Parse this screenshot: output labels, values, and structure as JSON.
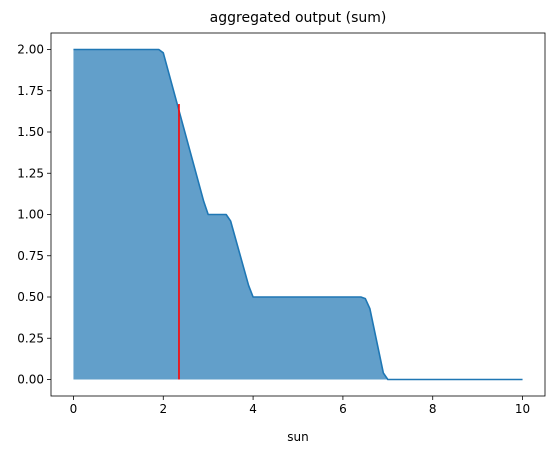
{
  "chart_data": {
    "type": "area",
    "title": "aggregated output (sum)",
    "xlabel": "sun",
    "ylabel": "",
    "xlim": [
      -0.5,
      10.5
    ],
    "ylim": [
      -0.1,
      2.1
    ],
    "x_ticks": [
      0,
      2,
      4,
      6,
      8,
      10
    ],
    "y_ticks": [
      0.0,
      0.25,
      0.5,
      0.75,
      1.0,
      1.25,
      1.5,
      1.75,
      2.0
    ],
    "x_tick_labels": [
      "0",
      "2",
      "4",
      "6",
      "8",
      "10"
    ],
    "y_tick_labels": [
      "0.00",
      "0.25",
      "0.50",
      "0.75",
      "1.00",
      "1.25",
      "1.50",
      "1.75",
      "2.00"
    ],
    "series": [
      {
        "name": "aggregated",
        "x": [
          0,
          1.9,
          2.0,
          2.9,
          3.0,
          3.4,
          3.5,
          3.9,
          4.0,
          6.4,
          6.5,
          6.6,
          6.9,
          7.0,
          10.0
        ],
        "y": [
          2.0,
          2.0,
          1.98,
          1.08,
          1.0,
          1.0,
          0.96,
          0.57,
          0.5,
          0.5,
          0.49,
          0.43,
          0.04,
          0.0,
          0.0
        ]
      }
    ],
    "vline": {
      "x": 2.35,
      "y0": 0.0,
      "y1": 1.67
    },
    "colors": {
      "fill": "#629fca",
      "line": "#1f77b4",
      "vline": "#ff0000",
      "axes": "#000000"
    }
  }
}
